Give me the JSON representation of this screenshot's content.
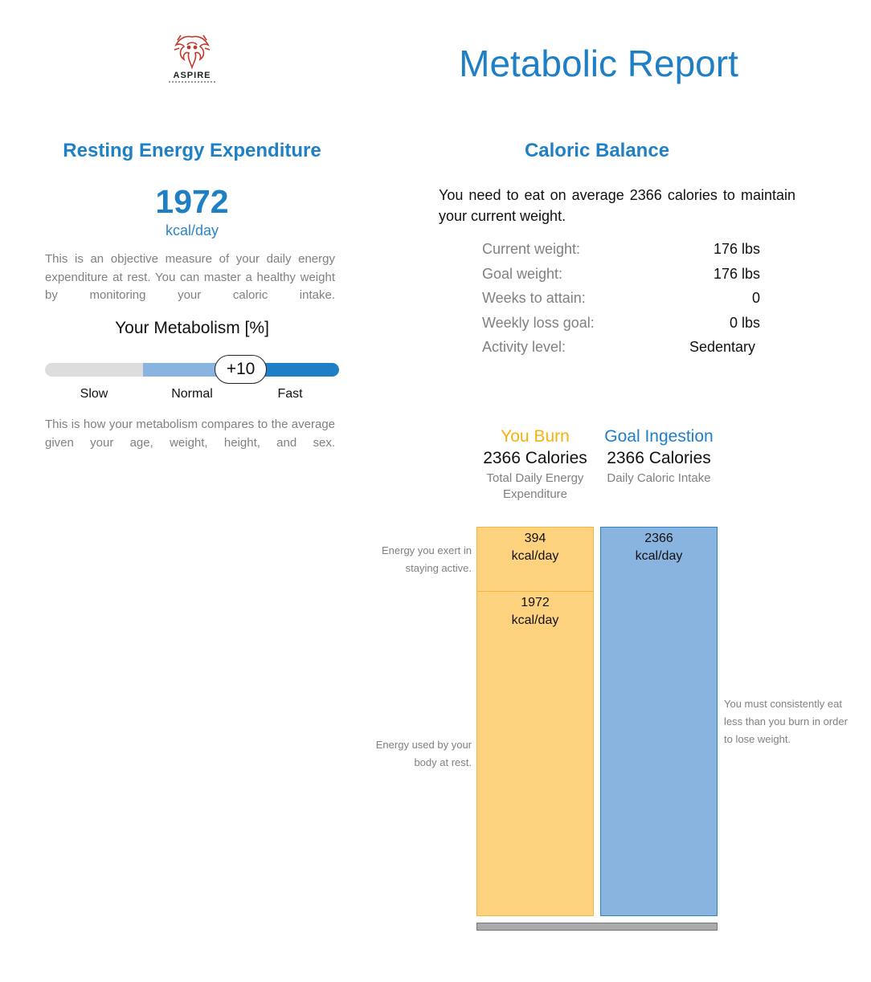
{
  "header": {
    "logo_text": "ASPIRE",
    "report_title": "Metabolic Report"
  },
  "ree": {
    "title": "Resting Energy Expenditure",
    "value": "1972",
    "unit": "kcal/day",
    "description": "This is an objective measure of your daily energy expenditure at rest. You can master a healthy weight by monitoring your caloric intake."
  },
  "metabolism": {
    "title": "Your Metabolism [%]",
    "value_label": "+10",
    "value": 10,
    "labels": [
      "Slow",
      "Normal",
      "Fast"
    ],
    "description": "This is how your metabolism compares to the average given your age, weight, height, and sex.",
    "colors": {
      "slow": "#dddddd",
      "normal": "#8ab4e0",
      "fast": "#1f7fc4"
    }
  },
  "caloric_balance": {
    "title": "Caloric Balance",
    "need_text": "You need to eat on average 2366 calories to maintain your current weight.",
    "stats": [
      {
        "label": "Current weight:",
        "value": "176 lbs"
      },
      {
        "label": "Goal weight:",
        "value": "176 lbs"
      },
      {
        "label": "Weeks to attain:",
        "value": "0"
      },
      {
        "label": "Weekly loss goal:",
        "value": "0 lbs"
      },
      {
        "label": "Activity level:",
        "value": "Sedentary"
      }
    ]
  },
  "burn": {
    "name": "You Burn",
    "calories": "2366 Calories",
    "subtitle": "Total Daily Energy Expenditure",
    "active": {
      "value": "394",
      "unit": "kcal/day",
      "note": "Energy you exert in staying active."
    },
    "rest": {
      "value": "1972",
      "unit": "kcal/day",
      "note": "Energy used by your body at rest."
    }
  },
  "goal": {
    "name": "Goal Ingestion",
    "calories": "2366 Calories",
    "subtitle": "Daily Caloric Intake",
    "bar": {
      "value": "2366",
      "unit": "kcal/day"
    },
    "note": "You must consistently eat less than you burn in order to lose weight."
  },
  "colors": {
    "blue_accent": "#1f7fc4",
    "burn_yellow": "#f5b20e",
    "burn_fill": "#fdd27f",
    "goal_fill": "#8ab4e0"
  }
}
